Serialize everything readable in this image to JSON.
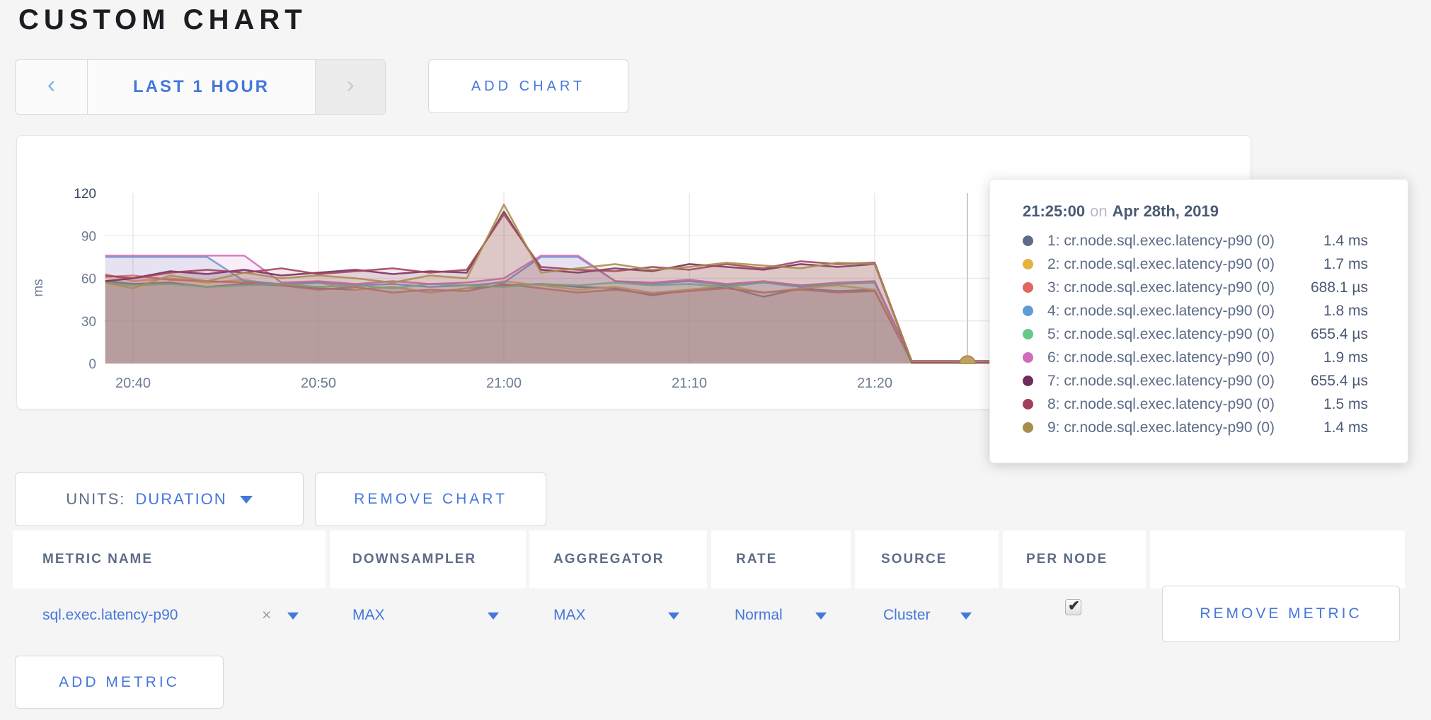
{
  "page": {
    "title": "CUSTOM CHART",
    "accent_color": "#4577DB",
    "background": "#f5f5f5"
  },
  "toolbar": {
    "prev_label": "‹",
    "time_range_label": "LAST 1 HOUR",
    "next_label": "›",
    "add_chart_label": "ADD CHART"
  },
  "chart_data": {
    "type": "area",
    "ylabel": "ms",
    "y_max": 120,
    "y_ticks": [
      0,
      30,
      60,
      90,
      120
    ],
    "x_ticks": [
      {
        "t": 2,
        "label": "20:40"
      },
      {
        "t": 12,
        "label": "20:50"
      },
      {
        "t": 22,
        "label": "21:00"
      },
      {
        "t": 32,
        "label": "21:10"
      },
      {
        "t": 42,
        "label": "21:20"
      }
    ],
    "crosshair_t": 47,
    "hover_marker": {
      "t": 47,
      "color": "#c2a05f",
      "edge": "#a5854a"
    },
    "x": [
      0.5,
      2,
      4,
      6,
      8,
      10,
      12,
      14,
      16,
      18,
      20,
      22,
      24,
      26,
      28,
      30,
      32,
      34,
      36,
      38,
      40,
      42,
      44,
      46,
      48,
      50,
      52,
      54,
      56,
      58,
      61.5
    ],
    "series": [
      {
        "node": "1",
        "color": "#5F6C87",
        "values": [
          58,
          56,
          57,
          54,
          56,
          55,
          53,
          52,
          54,
          50,
          53,
          55,
          56,
          54,
          53,
          48,
          52,
          54,
          47,
          53,
          51,
          52,
          1.4,
          1.4,
          1.4,
          1.4,
          1.4,
          1.4,
          1.4,
          1.4,
          1.4
        ]
      },
      {
        "node": "2",
        "color": "#E3B340",
        "values": [
          63,
          58,
          60,
          57,
          59,
          55,
          57,
          52,
          54,
          50,
          53,
          58,
          55,
          52,
          54,
          50,
          52,
          55,
          50,
          53,
          55,
          52,
          1.7,
          1.7,
          1.7,
          1.7,
          1.7,
          1.7,
          1.7,
          1.7,
          1.7
        ]
      },
      {
        "node": "3",
        "color": "#DF665C",
        "values": [
          61,
          62,
          59,
          58,
          57,
          55,
          52,
          54,
          50,
          52,
          51,
          56,
          53,
          50,
          52,
          49,
          51,
          53,
          50,
          52,
          50,
          51,
          0.7,
          0.7,
          0.7,
          0.7,
          0.7,
          0.7,
          0.7,
          0.7,
          0.7
        ]
      },
      {
        "node": "4",
        "color": "#5E9CD3",
        "values": [
          75,
          75,
          75,
          75,
          58,
          56,
          57,
          55,
          56,
          54,
          55,
          57,
          75,
          75,
          58,
          56,
          58,
          55,
          57,
          54,
          56,
          57,
          1.8,
          1.8,
          1.8,
          1.8,
          1.8,
          1.8,
          1.8,
          1.8,
          1.8
        ]
      },
      {
        "node": "5",
        "color": "#63C888",
        "values": [
          57,
          55,
          56,
          54,
          55,
          56,
          54,
          55,
          53,
          56,
          55,
          54,
          56,
          55,
          57,
          55,
          56,
          54,
          57,
          55,
          56,
          57,
          0.66,
          0.66,
          0.66,
          0.66,
          0.66,
          0.66,
          0.66,
          0.66,
          0.66
        ]
      },
      {
        "node": "6",
        "color": "#D06CBC",
        "values": [
          76,
          76,
          76,
          76,
          76,
          57,
          58,
          56,
          58,
          56,
          57,
          60,
          76,
          76,
          58,
          57,
          59,
          56,
          58,
          55,
          57,
          58,
          1.9,
          1.9,
          1.9,
          1.9,
          1.9,
          1.9,
          1.9,
          1.9,
          1.9
        ]
      },
      {
        "node": "7",
        "color": "#702C5C",
        "values": [
          58,
          60,
          65,
          63,
          66,
          62,
          64,
          66,
          63,
          65,
          64,
          107,
          66,
          64,
          67,
          65,
          70,
          68,
          66,
          70,
          68,
          70,
          0.66,
          0.66,
          0.66,
          0.66,
          0.66,
          0.66,
          0.66,
          0.66,
          0.66
        ]
      },
      {
        "node": "8",
        "color": "#A23F5B",
        "values": [
          62,
          60,
          64,
          66,
          64,
          67,
          63,
          65,
          67,
          64,
          66,
          105,
          68,
          66,
          65,
          68,
          66,
          70,
          67,
          72,
          70,
          71,
          1.5,
          1.5,
          1.5,
          1.5,
          1.5,
          1.5,
          1.5,
          1.5,
          1.5
        ]
      },
      {
        "node": "9",
        "color": "#A98C4B",
        "values": [
          57,
          53,
          62,
          58,
          64,
          60,
          62,
          60,
          57,
          62,
          60,
          112,
          64,
          67,
          70,
          66,
          68,
          71,
          69,
          67,
          71,
          70,
          1.4,
          1.4,
          1.4,
          1.4,
          1.4,
          1.4,
          1.4,
          1.4,
          1.4
        ]
      }
    ]
  },
  "tooltip": {
    "time": "21:25:00",
    "on": "on",
    "date": "Apr 28th, 2019",
    "rows": [
      {
        "color": "#5F6C87",
        "label": "1: cr.node.sql.exec.latency-p90 (0)",
        "value": "1.4 ms"
      },
      {
        "color": "#E3B340",
        "label": "2: cr.node.sql.exec.latency-p90 (0)",
        "value": "1.7 ms"
      },
      {
        "color": "#DF665C",
        "label": "3: cr.node.sql.exec.latency-p90 (0)",
        "value": "688.1 µs"
      },
      {
        "color": "#5E9CD3",
        "label": "4: cr.node.sql.exec.latency-p90 (0)",
        "value": "1.8 ms"
      },
      {
        "color": "#63C888",
        "label": "5: cr.node.sql.exec.latency-p90 (0)",
        "value": "655.4 µs"
      },
      {
        "color": "#D06CBC",
        "label": "6: cr.node.sql.exec.latency-p90 (0)",
        "value": "1.9 ms"
      },
      {
        "color": "#702C5C",
        "label": "7: cr.node.sql.exec.latency-p90 (0)",
        "value": "655.4 µs"
      },
      {
        "color": "#A23F5B",
        "label": "8: cr.node.sql.exec.latency-p90 (0)",
        "value": "1.5 ms"
      },
      {
        "color": "#A98C4B",
        "label": "9: cr.node.sql.exec.latency-p90 (0)",
        "value": "1.4 ms"
      }
    ]
  },
  "controls": {
    "units_label": "UNITS:",
    "units_value": "DURATION",
    "remove_chart_label": "REMOVE CHART",
    "remove_metric_label": "REMOVE METRIC",
    "add_metric_label": "ADD METRIC"
  },
  "table": {
    "headers": [
      "METRIC NAME",
      "DOWNSAMPLER",
      "AGGREGATOR",
      "RATE",
      "SOURCE",
      "PER NODE"
    ],
    "row": {
      "metric_name": "sql.exec.latency-p90",
      "clear_label": "×",
      "downsampler": "MAX",
      "aggregator": "MAX",
      "rate": "Normal",
      "source": "Cluster",
      "per_node_checked": true,
      "check_glyph": "✔"
    }
  }
}
